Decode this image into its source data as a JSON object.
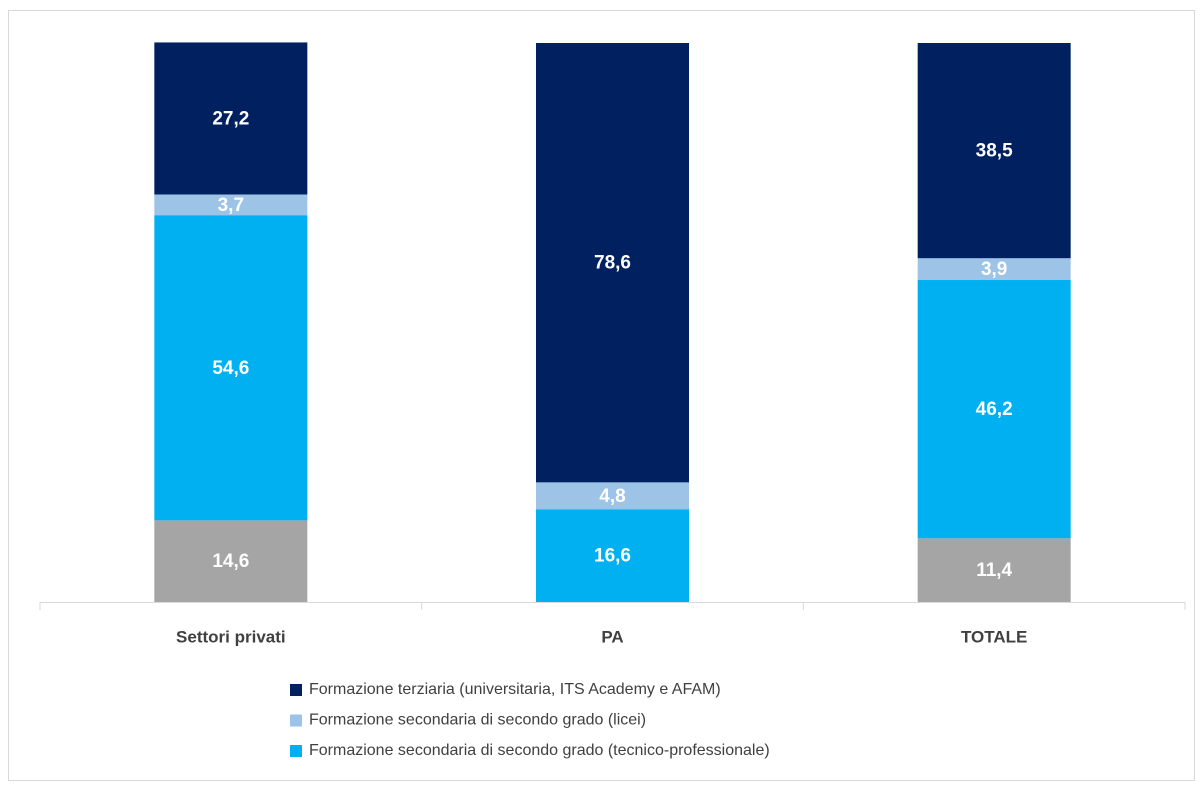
{
  "chart_data": {
    "type": "stacked_bar",
    "categories": [
      "Settori privati",
      "PA",
      "TOTALE"
    ],
    "ylim": [
      0,
      100
    ],
    "series": [
      {
        "color": "#a5a5a5",
        "values": [
          14.6,
          null,
          11.4
        ],
        "value_labels": [
          "14,6",
          null,
          "11,4"
        ]
      },
      {
        "name": "Formazione secondaria di secondo grado (tecnico-professionale)",
        "color": "#00b0f0",
        "values": [
          54.6,
          16.6,
          46.2
        ],
        "value_labels": [
          "54,6",
          "16,6",
          "46,2"
        ]
      },
      {
        "name": "Formazione secondaria di secondo grado (licei)",
        "color": "#9dc3e6",
        "values": [
          3.7,
          4.8,
          3.9
        ],
        "value_labels": [
          "3,7",
          "4,8",
          "3,9"
        ]
      },
      {
        "name": "Formazione terziaria (universitaria, ITS Academy e AFAM)",
        "color": "#002060",
        "values": [
          27.2,
          78.6,
          38.5
        ],
        "value_labels": [
          "27,2",
          "78,6",
          "38,5"
        ]
      }
    ]
  }
}
